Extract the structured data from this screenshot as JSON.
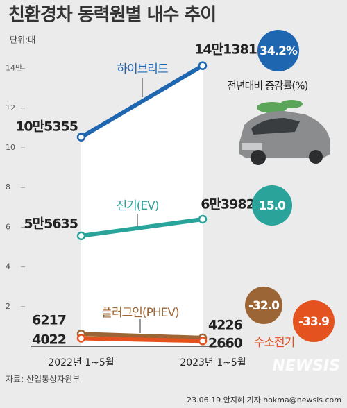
{
  "chart_data": {
    "type": "line",
    "title": "친환경차 동력원별 내수 추이",
    "unit": "단위:대",
    "change_title": "전년대비 증감률(%)",
    "source": "자료: 산업통상자원부",
    "footer": "23.06.19 안지혜 기자 hokma@newsis.com",
    "watermark": "NEWSIS",
    "categories": [
      "2022년 1~5월",
      "2023년 1~5월"
    ],
    "ylim": [
      0,
      15
    ],
    "yticks": [
      2,
      4,
      6,
      8,
      10,
      12,
      {
        "value": 14,
        "label": "14만"
      }
    ],
    "series": [
      {
        "name": "하이브리드",
        "color": "#1f66b0",
        "values": [
          10.5355,
          14.1381
        ],
        "value_labels": [
          "10만5355",
          "14만1381"
        ],
        "change": 34.2,
        "change_label": "34.2%"
      },
      {
        "name": "전기(EV)",
        "color": "#2aa39b",
        "values": [
          5.5635,
          6.3982
        ],
        "value_labels": [
          "5만5635",
          "6만3982"
        ],
        "change": 15.0,
        "change_label": "15.0"
      },
      {
        "name": "플러그인(PHEV)",
        "color": "#9c6535",
        "values": [
          0.6217,
          0.4226
        ],
        "value_labels": [
          "6217",
          "4226"
        ],
        "change": -32.0,
        "change_label": "-32.0"
      },
      {
        "name": "수소전기",
        "color": "#e4531f",
        "values": [
          0.4022,
          0.266
        ],
        "value_labels": [
          "4022",
          "2660"
        ],
        "change": -33.9,
        "change_label": "-33.9"
      }
    ]
  }
}
